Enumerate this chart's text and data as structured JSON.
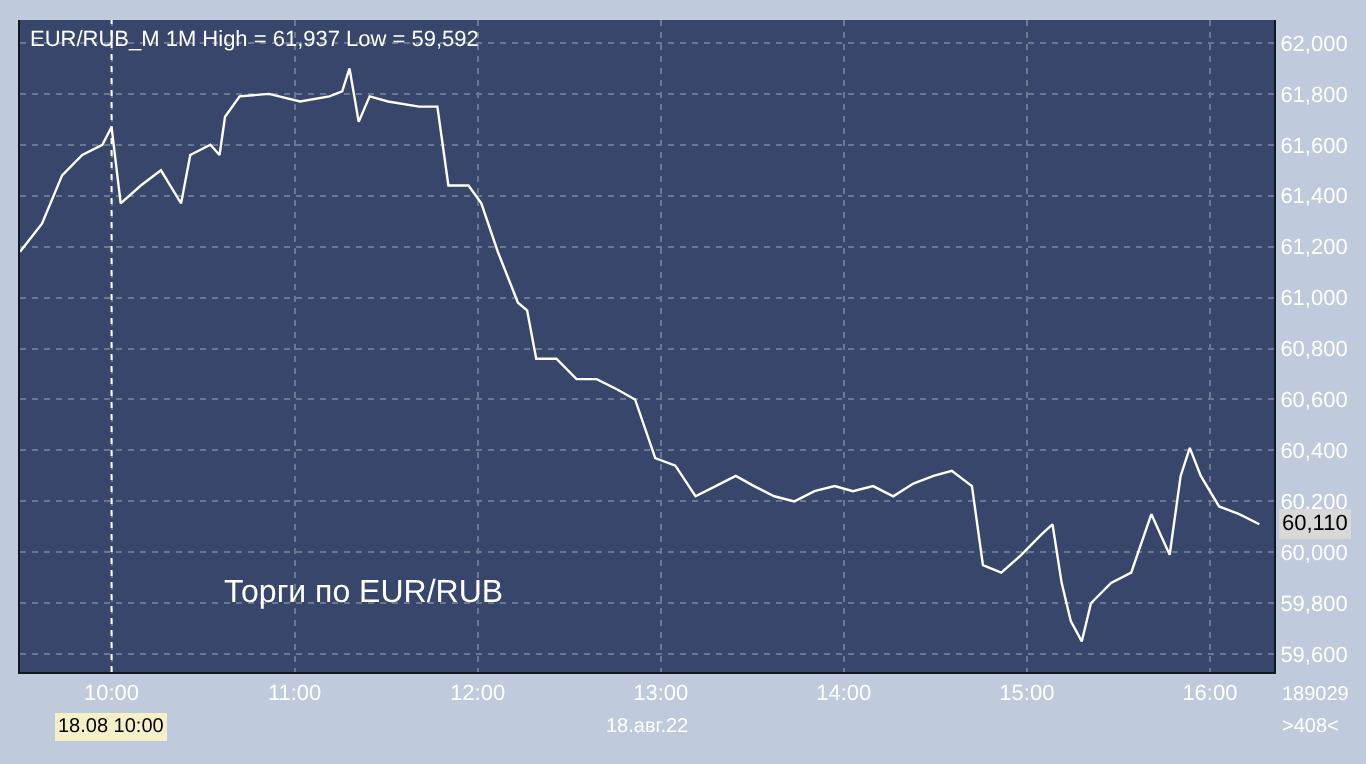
{
  "chart_data": {
    "type": "line",
    "title": "EUR/RUB_M 1M High = 61,937 Low = 59,592",
    "x": [
      9.5,
      9.62,
      9.73,
      9.84,
      9.95,
      10.0,
      10.05,
      10.16,
      10.27,
      10.38,
      10.43,
      10.54,
      10.59,
      10.62,
      10.7,
      10.86,
      11.03,
      11.19,
      11.26,
      11.3,
      11.35,
      11.41,
      11.51,
      11.68,
      11.78,
      11.84,
      11.95,
      12.02,
      12.11,
      12.22,
      12.27,
      12.32,
      12.43,
      12.54,
      12.65,
      12.76,
      12.86,
      12.97,
      13.08,
      13.19,
      13.3,
      13.41,
      13.51,
      13.62,
      13.73,
      13.84,
      13.95,
      14.05,
      14.16,
      14.27,
      14.38,
      14.49,
      14.59,
      14.7,
      14.76,
      14.86,
      14.97,
      15.08,
      15.14,
      15.19,
      15.24,
      15.3,
      15.35,
      15.46,
      15.57,
      15.68,
      15.73,
      15.78,
      15.84,
      15.89,
      15.95,
      16.05,
      16.16,
      16.27
    ],
    "series": [
      {
        "color": "#ffffff",
        "values": [
          61180,
          61290,
          61480,
          61560,
          61600,
          61670,
          61370,
          61440,
          61500,
          61370,
          61560,
          61600,
          61560,
          61710,
          61790,
          61800,
          61770,
          61790,
          61810,
          61900,
          61690,
          61790,
          61770,
          61750,
          61750,
          61440,
          61440,
          61370,
          61180,
          60980,
          60950,
          60760,
          60760,
          60680,
          60680,
          60640,
          60600,
          60370,
          60340,
          60220,
          60260,
          60300,
          60260,
          60220,
          60200,
          60240,
          60260,
          60240,
          60260,
          60220,
          60270,
          60300,
          60320,
          60260,
          59950,
          59920,
          59990,
          60070,
          60110,
          59880,
          59730,
          59650,
          59800,
          59880,
          59920,
          60150,
          60070,
          59990,
          60300,
          60410,
          60300,
          60180,
          60150,
          60110
        ]
      }
    ],
    "xlim": [
      9.5,
      16.35
    ],
    "xticks": [
      {
        "value": 10,
        "label": "10:00"
      },
      {
        "value": 11,
        "label": "11:00"
      },
      {
        "value": 12,
        "label": "12:00"
      },
      {
        "value": 13,
        "label": "13:00"
      },
      {
        "value": 14,
        "label": "14:00"
      },
      {
        "value": 15,
        "label": "15:00"
      },
      {
        "value": 16,
        "label": "16:00"
      }
    ],
    "ylim": [
      59530,
      62090
    ],
    "yticks": [
      {
        "value": 59600,
        "label": "59,600"
      },
      {
        "value": 59800,
        "label": "59,800"
      },
      {
        "value": 60000,
        "label": "60,000"
      },
      {
        "value": 60200,
        "label": "60,200"
      },
      {
        "value": 60400,
        "label": "60,400"
      },
      {
        "value": 60600,
        "label": "60,600"
      },
      {
        "value": 60800,
        "label": "60,800"
      },
      {
        "value": 61000,
        "label": "61,000"
      },
      {
        "value": 61200,
        "label": "61,200"
      },
      {
        "value": 61400,
        "label": "61,400"
      },
      {
        "value": 61600,
        "label": "61,600"
      },
      {
        "value": 61800,
        "label": "61,800"
      },
      {
        "value": 62000,
        "label": "62,000"
      }
    ],
    "grid": true,
    "marker": "none",
    "line_style": "solid",
    "ref_lines": [
      {
        "axis": "x",
        "value": 10,
        "label": "18.08 10:00",
        "line_style": "dotted",
        "color": "#ffffff"
      }
    ],
    "annotations": [
      "Торги по EUR/RUB",
      "18.авг.22",
      "189029",
      ">408<",
      "60,110"
    ]
  }
}
